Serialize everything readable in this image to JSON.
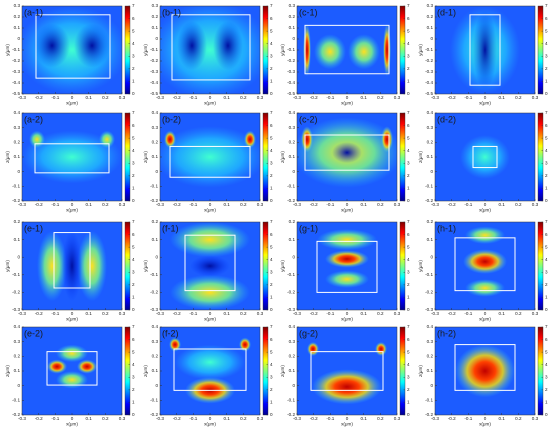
{
  "chart_data": [
    {
      "type": "heatmap",
      "title": "(a-1)",
      "xlabel": "x(μm)",
      "ylabel": "y(μm)",
      "xlim": [
        -0.3,
        0.3
      ],
      "ylim": [
        -0.5,
        0.3
      ],
      "xticks": [
        -0.3,
        -0.2,
        -0.1,
        0,
        0.1,
        0.2,
        0.3
      ],
      "yticks": [
        0.3,
        0.2,
        0.1,
        0,
        -0.1,
        -0.2,
        -0.3,
        -0.4,
        -0.5
      ],
      "clim": [
        0,
        7
      ],
      "cticks": [
        0,
        1,
        2,
        3,
        4,
        5,
        6,
        7
      ]
    },
    {
      "type": "heatmap",
      "title": "(b-1)",
      "xlabel": "x(μm)",
      "ylabel": "y(μm)",
      "xlim": [
        -0.3,
        0.3
      ],
      "ylim": [
        -0.5,
        0.3
      ],
      "xticks": [
        -0.3,
        -0.2,
        -0.1,
        0,
        0.1,
        0.2,
        0.3
      ],
      "yticks": [
        0.3,
        0.2,
        0.1,
        0,
        -0.1,
        -0.2,
        -0.3,
        -0.4,
        -0.5
      ],
      "clim": [
        0,
        7
      ],
      "cticks": [
        0,
        1,
        2,
        3,
        4,
        5,
        6,
        7
      ]
    },
    {
      "type": "heatmap",
      "title": "(c-1)",
      "xlabel": "x(μm)",
      "ylabel": "y(μm)",
      "xlim": [
        -0.3,
        0.3
      ],
      "ylim": [
        -0.5,
        0.3
      ],
      "xticks": [
        -0.3,
        -0.2,
        -0.1,
        0,
        0.1,
        0.2,
        0.3
      ],
      "yticks": [
        0.3,
        0.2,
        0.1,
        0,
        -0.1,
        -0.2,
        -0.3,
        -0.4,
        -0.5
      ],
      "clim": [
        0,
        7
      ],
      "cticks": [
        0,
        1,
        2,
        3,
        4,
        5,
        6,
        7
      ]
    },
    {
      "type": "heatmap",
      "title": "(d-1)",
      "xlabel": "x(μm)",
      "ylabel": "y(μm)",
      "xlim": [
        -0.3,
        0.3
      ],
      "ylim": [
        -0.5,
        0.3
      ],
      "xticks": [
        -0.3,
        -0.2,
        -0.1,
        0,
        0.1,
        0.2,
        0.3
      ],
      "yticks": [
        0.3,
        0.2,
        0.1,
        0,
        -0.1,
        -0.2,
        -0.3,
        -0.4,
        -0.5
      ],
      "clim": [
        0,
        7
      ],
      "cticks": [
        0,
        1,
        2,
        3,
        4,
        5,
        6,
        7
      ]
    },
    {
      "type": "heatmap",
      "title": "(a-2)",
      "xlabel": "x(μm)",
      "ylabel": "z(μm)",
      "xlim": [
        -0.3,
        0.3
      ],
      "ylim": [
        -0.2,
        0.4
      ],
      "xticks": [
        -0.3,
        -0.2,
        -0.1,
        0,
        0.1,
        0.2,
        0.3
      ],
      "yticks": [
        0.4,
        0.3,
        0.2,
        0.1,
        0,
        -0.1,
        -0.2
      ],
      "clim": [
        0,
        7
      ],
      "cticks": [
        0,
        1,
        2,
        3,
        4,
        5,
        6,
        7
      ]
    },
    {
      "type": "heatmap",
      "title": "(b-2)",
      "xlabel": "x(μm)",
      "ylabel": "z(μm)",
      "xlim": [
        -0.3,
        0.3
      ],
      "ylim": [
        -0.2,
        0.4
      ],
      "xticks": [
        -0.3,
        -0.2,
        -0.1,
        0,
        0.1,
        0.2,
        0.3
      ],
      "yticks": [
        0.4,
        0.3,
        0.2,
        0.1,
        0,
        -0.1,
        -0.2
      ],
      "clim": [
        0,
        7
      ],
      "cticks": [
        0,
        1,
        2,
        3,
        4,
        5,
        6,
        7
      ]
    },
    {
      "type": "heatmap",
      "title": "(c-2)",
      "xlabel": "x(μm)",
      "ylabel": "z(μm)",
      "xlim": [
        -0.3,
        0.3
      ],
      "ylim": [
        -0.2,
        0.4
      ],
      "xticks": [
        -0.3,
        -0.2,
        -0.1,
        0,
        0.1,
        0.2,
        0.3
      ],
      "yticks": [
        0.4,
        0.3,
        0.2,
        0.1,
        0,
        -0.1,
        -0.2
      ],
      "clim": [
        0,
        7
      ],
      "cticks": [
        0,
        1,
        2,
        3,
        4,
        5,
        6,
        7
      ]
    },
    {
      "type": "heatmap",
      "title": "(d-2)",
      "xlabel": "x(μm)",
      "ylabel": "z(μm)",
      "xlim": [
        -0.3,
        0.3
      ],
      "ylim": [
        -0.2,
        0.4
      ],
      "xticks": [
        -0.3,
        -0.2,
        -0.1,
        0,
        0.1,
        0.2,
        0.3
      ],
      "yticks": [
        0.4,
        0.3,
        0.2,
        0.1,
        0,
        -0.1,
        -0.2
      ],
      "clim": [
        0,
        7
      ],
      "cticks": [
        0,
        1,
        2,
        3,
        4,
        5,
        6,
        7
      ]
    },
    {
      "type": "heatmap",
      "title": "(e-1)",
      "xlabel": "x(μm)",
      "ylabel": "y(μm)",
      "xlim": [
        -0.3,
        0.3
      ],
      "ylim": [
        -0.3,
        0.2
      ],
      "xticks": [
        -0.3,
        -0.2,
        -0.1,
        0,
        0.1,
        0.2,
        0.3
      ],
      "yticks": [
        0.2,
        0.1,
        0,
        -0.1,
        -0.2,
        -0.3
      ],
      "clim": [
        0,
        7
      ],
      "cticks": [
        0,
        1,
        2,
        3,
        4,
        5,
        6,
        7
      ]
    },
    {
      "type": "heatmap",
      "title": "(f-1)",
      "xlabel": "x(μm)",
      "ylabel": "y(μm)",
      "xlim": [
        -0.3,
        0.3
      ],
      "ylim": [
        -0.3,
        0.2
      ],
      "xticks": [
        -0.3,
        -0.2,
        -0.1,
        0,
        0.1,
        0.2,
        0.3
      ],
      "yticks": [
        0.2,
        0.1,
        0,
        -0.1,
        -0.2,
        -0.3
      ],
      "clim": [
        0,
        7
      ],
      "cticks": [
        0,
        1,
        2,
        3,
        4,
        5,
        6,
        7
      ]
    },
    {
      "type": "heatmap",
      "title": "(g-1)",
      "xlabel": "x(μm)",
      "ylabel": "y(μm)",
      "xlim": [
        -0.3,
        0.3
      ],
      "ylim": [
        -0.3,
        0.2
      ],
      "xticks": [
        -0.3,
        -0.2,
        -0.1,
        0,
        0.1,
        0.2,
        0.3
      ],
      "yticks": [
        0.2,
        0.1,
        0,
        -0.1,
        -0.2,
        -0.3
      ],
      "clim": [
        0,
        7
      ],
      "cticks": [
        0,
        1,
        2,
        3,
        4,
        5,
        6,
        7
      ]
    },
    {
      "type": "heatmap",
      "title": "(h-1)",
      "xlabel": "x(μm)",
      "ylabel": "y(μm)",
      "xlim": [
        -0.3,
        0.3
      ],
      "ylim": [
        -0.3,
        0.2
      ],
      "xticks": [
        -0.3,
        -0.2,
        -0.1,
        0,
        0.1,
        0.2,
        0.3
      ],
      "yticks": [
        0.2,
        0.1,
        0,
        -0.1,
        -0.2,
        -0.3
      ],
      "clim": [
        0,
        7
      ],
      "cticks": [
        0,
        1,
        2,
        3,
        4,
        5,
        6,
        7
      ]
    },
    {
      "type": "heatmap",
      "title": "(e-2)",
      "xlabel": "x(μm)",
      "ylabel": "z(μm)",
      "xlim": [
        -0.3,
        0.3
      ],
      "ylim": [
        -0.2,
        0.4
      ],
      "xticks": [
        -0.3,
        -0.2,
        -0.1,
        0,
        0.1,
        0.2,
        0.3
      ],
      "yticks": [
        0.4,
        0.3,
        0.2,
        0.1,
        0,
        -0.1,
        -0.2
      ],
      "clim": [
        0,
        7
      ],
      "cticks": [
        0,
        1,
        2,
        3,
        4,
        5,
        6,
        7
      ]
    },
    {
      "type": "heatmap",
      "title": "(f-2)",
      "xlabel": "x(μm)",
      "ylabel": "z(μm)",
      "xlim": [
        -0.3,
        0.3
      ],
      "ylim": [
        -0.2,
        0.4
      ],
      "xticks": [
        -0.3,
        -0.2,
        -0.1,
        0,
        0.1,
        0.2,
        0.3
      ],
      "yticks": [
        0.4,
        0.3,
        0.2,
        0.1,
        0,
        -0.1,
        -0.2
      ],
      "clim": [
        0,
        7
      ],
      "cticks": [
        0,
        1,
        2,
        3,
        4,
        5,
        6,
        7
      ]
    },
    {
      "type": "heatmap",
      "title": "(g-2)",
      "xlabel": "x(μm)",
      "ylabel": "z(μm)",
      "xlim": [
        -0.3,
        0.3
      ],
      "ylim": [
        -0.2,
        0.4
      ],
      "xticks": [
        -0.3,
        -0.2,
        -0.1,
        0,
        0.1,
        0.2,
        0.3
      ],
      "yticks": [
        0.4,
        0.3,
        0.2,
        0.1,
        0,
        -0.1,
        -0.2
      ],
      "clim": [
        0,
        7
      ],
      "cticks": [
        0,
        1,
        2,
        3,
        4,
        5,
        6,
        7
      ]
    },
    {
      "type": "heatmap",
      "title": "(h-2)",
      "xlabel": "x(μm)",
      "ylabel": "z(μm)",
      "xlim": [
        -0.3,
        0.3
      ],
      "ylim": [
        -0.2,
        0.4
      ],
      "xticks": [
        -0.3,
        -0.2,
        -0.1,
        0,
        0.1,
        0.2,
        0.3
      ],
      "yticks": [
        0.4,
        0.3,
        0.2,
        0.1,
        0,
        -0.1,
        -0.2
      ],
      "clim": [
        0,
        7
      ],
      "cticks": [
        0,
        1,
        2,
        3,
        4,
        5,
        6,
        7
      ]
    }
  ]
}
